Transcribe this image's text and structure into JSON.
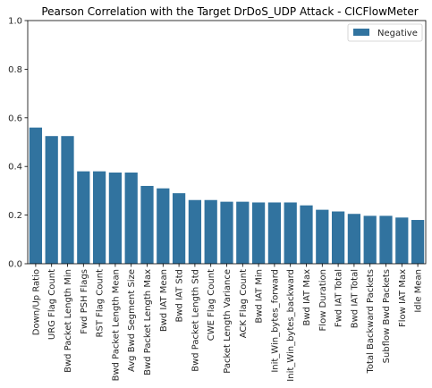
{
  "chart_data": {
    "type": "bar",
    "title": "Pearson Correlation with the Target DrDoS_UDP Attack - CICFlowMeter",
    "xlabel": "",
    "ylabel": "",
    "ylim": [
      0,
      1.0
    ],
    "yticks": [
      "0.0",
      "0.2",
      "0.4",
      "0.6",
      "0.8",
      "1.0"
    ],
    "grid": false,
    "legend_position": "top-right",
    "categories": [
      "Down/Up Ratio",
      "URG Flag Count",
      "Bwd Packet Length Min",
      "Fwd PSH Flags",
      "RST Flag Count",
      "Bwd Packet Length Mean",
      "Avg Bwd Segment Size",
      "Bwd Packet Length Max",
      "Bwd IAT Mean",
      "Bwd IAT Std",
      "Bwd Packet Length Std",
      "CWE Flag Count",
      "Packet Length Variance",
      "ACK Flag Count",
      "Bwd IAT Min",
      "Init_Win_bytes_forward",
      "Init_Win_bytes_backward",
      "Bwd IAT Max",
      "Flow Duration",
      "Fwd IAT Total",
      "Bwd IAT Total",
      "Total Backward Packets",
      "Subflow Bwd Packets",
      "Flow IAT Max",
      "Idle Mean"
    ],
    "series": [
      {
        "name": "Negative",
        "color": "#31739f",
        "values": [
          0.56,
          0.525,
          0.525,
          0.38,
          0.38,
          0.375,
          0.375,
          0.32,
          0.31,
          0.29,
          0.262,
          0.262,
          0.255,
          0.255,
          0.252,
          0.252,
          0.252,
          0.24,
          0.222,
          0.215,
          0.205,
          0.197,
          0.197,
          0.19,
          0.18
        ]
      }
    ]
  }
}
